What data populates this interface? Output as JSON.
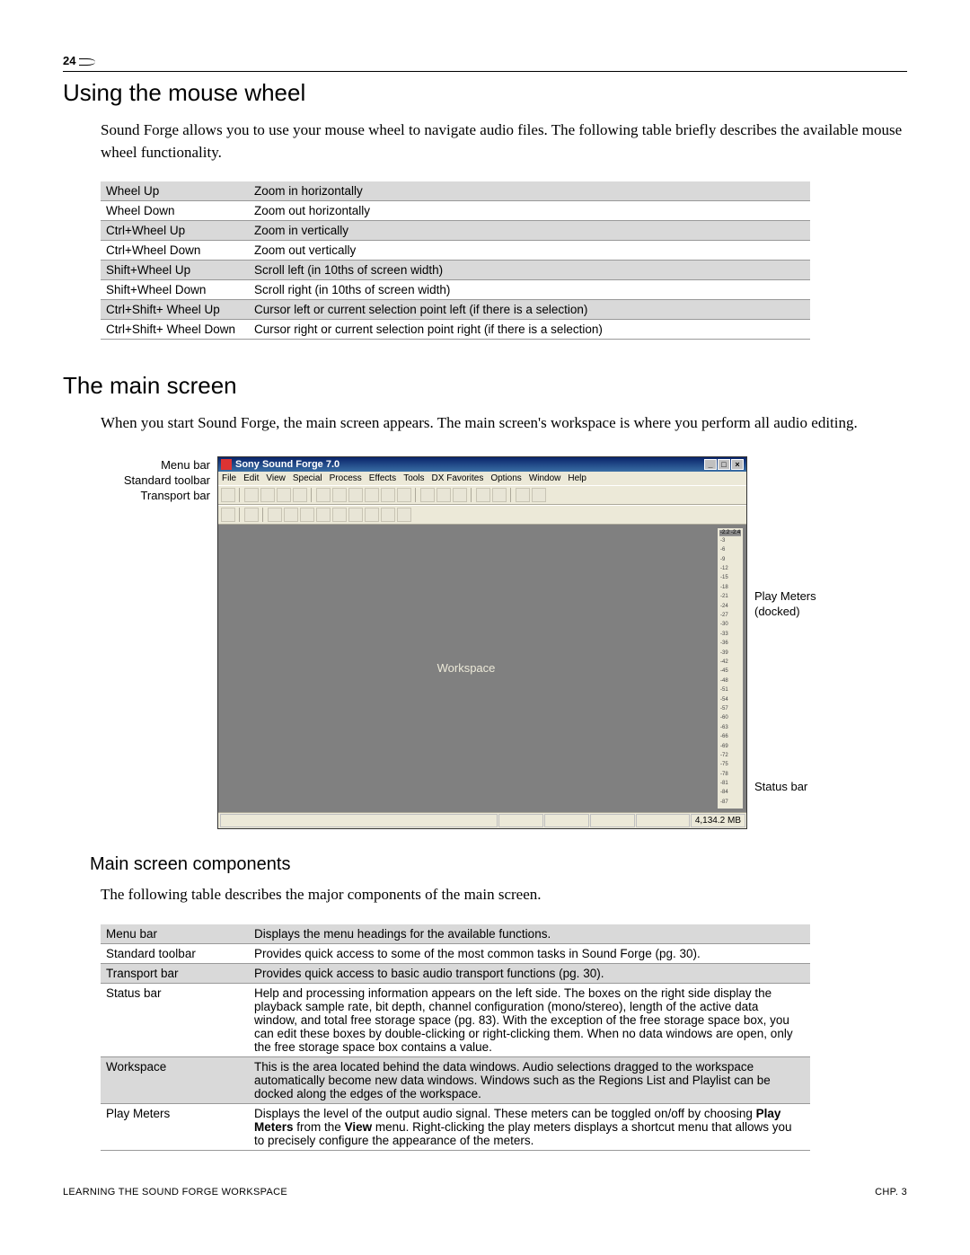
{
  "page_number": "24",
  "section1": {
    "title": "Using the mouse wheel",
    "intro": "Sound Forge allows you to use your mouse wheel to navigate audio files. The following table briefly describes the available mouse wheel functionality.",
    "table": [
      {
        "k": "Wheel Up",
        "v": "Zoom in horizontally",
        "shaded": true
      },
      {
        "k": "Wheel Down",
        "v": "Zoom out horizontally",
        "shaded": false
      },
      {
        "k": "Ctrl+Wheel Up",
        "v": "Zoom in vertically",
        "shaded": true
      },
      {
        "k": "Ctrl+Wheel Down",
        "v": "Zoom out vertically",
        "shaded": false
      },
      {
        "k": "Shift+Wheel Up",
        "v": "Scroll left (in 10ths of screen width)",
        "shaded": true
      },
      {
        "k": "Shift+Wheel Down",
        "v": "Scroll right (in 10ths of screen width)",
        "shaded": false
      },
      {
        "k": "Ctrl+Shift+ Wheel Up",
        "v": "Cursor left or current selection point left (if there is a selection)",
        "shaded": true
      },
      {
        "k": "Ctrl+Shift+ Wheel Down",
        "v": "Cursor right or current selection point right (if there is a selection)",
        "shaded": false
      }
    ]
  },
  "section2": {
    "title": "The main screen",
    "intro": "When you start Sound Forge, the main screen appears. The main screen's workspace is where you perform all audio editing."
  },
  "screenshot": {
    "labels_left": [
      "Menu bar",
      "Standard toolbar",
      "Transport bar"
    ],
    "title": "Sony Sound Forge 7.0",
    "menu": [
      "File",
      "Edit",
      "View",
      "Special",
      "Process",
      "Effects",
      "Tools",
      "DX Favorites",
      "Options",
      "Window",
      "Help"
    ],
    "workspace_label": "Workspace",
    "meter_head": [
      "-2.2",
      "-2.4"
    ],
    "meter_ticks": [
      "-3",
      "-6",
      "-9",
      "-12",
      "-15",
      "-18",
      "-21",
      "-24",
      "-27",
      "-30",
      "-33",
      "-36",
      "-39",
      "-42",
      "-45",
      "-48",
      "-51",
      "-54",
      "-57",
      "-60",
      "-63",
      "-66",
      "-69",
      "-72",
      "-75",
      "-78",
      "-81",
      "-84",
      "-87"
    ],
    "status_value": "4,134.2 MB",
    "label_play_meters": "Play Meters (docked)",
    "label_status": "Status bar"
  },
  "section3": {
    "title": "Main screen components",
    "intro": "The following table describes the major components of the main screen.",
    "table": [
      {
        "k": "Menu bar",
        "v": "Displays the menu headings for the available functions.",
        "shaded": true
      },
      {
        "k": "Standard toolbar",
        "v": "Provides quick access to some of the most common tasks in Sound Forge (pg. 30).",
        "shaded": false
      },
      {
        "k": "Transport bar",
        "v": "Provides quick access to basic audio transport functions (pg. 30).",
        "shaded": true
      },
      {
        "k": "Status bar",
        "v": "Help and processing information appears on the left side. The boxes on the right side display the playback sample rate, bit depth, channel configuration (mono/stereo), length of the active data window, and total free storage space (pg. 83). With the exception of the free storage space box, you can edit these boxes by double-clicking or right-clicking them. When no data windows are open, only the free storage space box contains a value.",
        "shaded": false
      },
      {
        "k": "Workspace",
        "v": "This is the area located behind the data windows. Audio selections dragged to the workspace automatically become new data windows. Windows such as the Regions List and Playlist can be docked along the edges of the workspace.",
        "shaded": true
      }
    ],
    "play_meters": {
      "k": "Play Meters",
      "pre": "Displays the level of the output audio signal. These meters can be toggled on/off by choosing ",
      "b1": "Play Meters",
      "mid": " from the ",
      "b2": "View",
      "post": " menu. Right-clicking the play meters displays a shortcut menu that allows you to precisely configure the appearance of the meters."
    }
  },
  "footer": {
    "left": "LEARNING THE SOUND FORGE WORKSPACE",
    "right": "CHP. 3"
  }
}
